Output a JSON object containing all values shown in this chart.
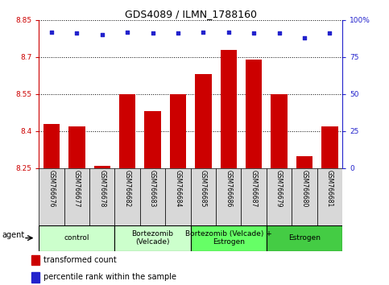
{
  "title": "GDS4089 / ILMN_1788160",
  "samples": [
    "GSM766676",
    "GSM766677",
    "GSM766678",
    "GSM766682",
    "GSM766683",
    "GSM766684",
    "GSM766685",
    "GSM766686",
    "GSM766687",
    "GSM766679",
    "GSM766680",
    "GSM766681"
  ],
  "bar_values": [
    8.43,
    8.42,
    8.26,
    8.55,
    8.48,
    8.55,
    8.63,
    8.73,
    8.69,
    8.55,
    8.3,
    8.42
  ],
  "percentile_values": [
    92,
    91,
    90,
    92,
    91,
    91,
    92,
    92,
    91,
    91,
    88,
    91
  ],
  "ylim_left": [
    8.25,
    8.85
  ],
  "ylim_right": [
    0,
    100
  ],
  "yticks_left": [
    8.25,
    8.4,
    8.55,
    8.7,
    8.85
  ],
  "yticks_right": [
    0,
    25,
    50,
    75,
    100
  ],
  "bar_color": "#cc0000",
  "dot_color": "#2222cc",
  "bar_width": 0.65,
  "groups": [
    {
      "label": "control",
      "start": 0,
      "end": 3,
      "color": "#ccffcc"
    },
    {
      "label": "Bortezomib\n(Velcade)",
      "start": 3,
      "end": 6,
      "color": "#ccffcc"
    },
    {
      "label": "Bortezomib (Velcade) +\nEstrogen",
      "start": 6,
      "end": 9,
      "color": "#66ff66"
    },
    {
      "label": "Estrogen",
      "start": 9,
      "end": 12,
      "color": "#44cc44"
    }
  ],
  "agent_label": "agent",
  "legend_items": [
    {
      "color": "#cc0000",
      "label": "transformed count"
    },
    {
      "color": "#2222cc",
      "label": "percentile rank within the sample"
    }
  ],
  "title_fontsize": 9,
  "tick_fontsize": 6.5,
  "sample_fontsize": 5.5,
  "group_fontsize": 6.5,
  "legend_fontsize": 7.0
}
